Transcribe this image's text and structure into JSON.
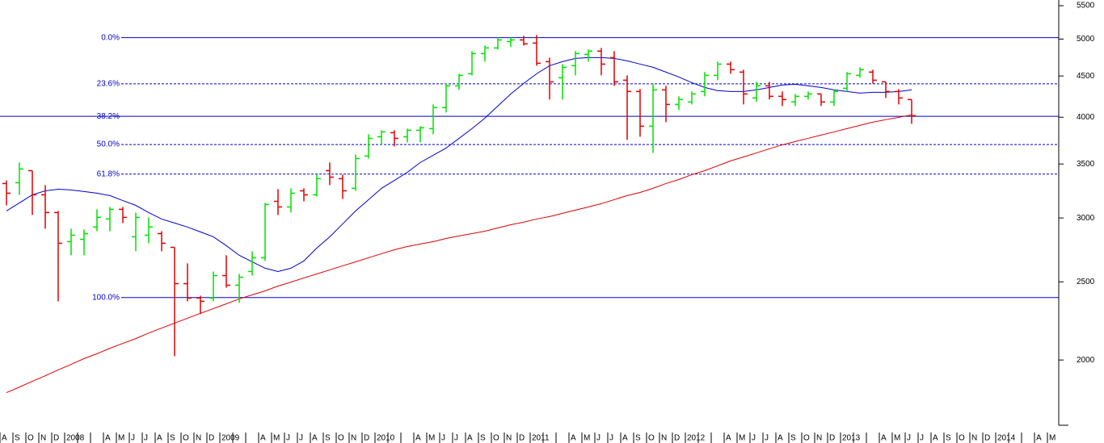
{
  "chart_data": {
    "type": "ohlc",
    "categories": [
      "A",
      "S",
      "O",
      "N",
      "D",
      "2008",
      null,
      null,
      "A",
      "M",
      "J",
      "J",
      "A",
      "S",
      "O",
      "N",
      "D",
      "2009",
      null,
      null,
      "A",
      "M",
      "J",
      "J",
      "A",
      "S",
      "O",
      "N",
      "D",
      "2010",
      null,
      null,
      "A",
      "M",
      "J",
      "J",
      "A",
      "S",
      "O",
      "N",
      "D",
      "2011",
      null,
      null,
      "A",
      "M",
      "J",
      "J",
      "A",
      "S",
      "O",
      "N",
      "D",
      "2012",
      null,
      null,
      "A",
      "M",
      "J",
      "J",
      "A",
      "S",
      "O",
      "N",
      "D",
      "2013",
      null,
      null,
      "A",
      "M",
      "J",
      "J",
      "A",
      "S",
      "O",
      "N",
      "D",
      "2014",
      null,
      null,
      "A",
      "M"
    ],
    "open": [
      3310,
      3318,
      3434,
      3205,
      3047,
      2804,
      2823,
      2923,
      2991,
      3075,
      2843,
      2856,
      2869,
      2759,
      2487,
      2387,
      2387,
      2545,
      2476,
      2575,
      2678,
      3146,
      3096,
      3242,
      3205,
      3434,
      3356,
      3265,
      3580,
      3783,
      3827,
      3783,
      3854,
      3872,
      4111,
      4375,
      4529,
      4797,
      4875,
      4965,
      4988,
      4943,
      4688,
      4477,
      4634,
      4786,
      4831,
      4742,
      4446,
      4305,
      3899,
      4325,
      4149,
      4178,
      4305,
      4508,
      4655,
      4550,
      4226,
      4375,
      4246,
      4178,
      4246,
      4275,
      4178,
      4345,
      4508,
      4550,
      4425,
      4305,
      4207,
      null,
      null,
      null,
      null,
      null,
      null,
      null,
      null,
      null,
      null,
      null
    ],
    "high": [
      3340,
      3515,
      3434,
      3295,
      3061,
      2910,
      2903,
      3075,
      3096,
      3096,
      3047,
      3005,
      2889,
      2759,
      2635,
      2403,
      2575,
      2697,
      2557,
      2728,
      3132,
      3257,
      3265,
      3265,
      3395,
      3515,
      3395,
      3596,
      3810,
      3854,
      3854,
      3872,
      3899,
      4149,
      4405,
      4529,
      4831,
      4909,
      5023,
      5023,
      5046,
      5058,
      4742,
      4655,
      4831,
      4853,
      4875,
      4831,
      4508,
      4335,
      4405,
      4375,
      4246,
      4305,
      4550,
      4688,
      4688,
      4581,
      4425,
      4425,
      4305,
      4275,
      4305,
      4275,
      4325,
      4550,
      4613,
      4581,
      4425,
      4335,
      4207,
      null,
      null,
      null,
      null,
      null,
      null,
      null,
      null,
      null,
      null,
      null
    ],
    "low": [
      3110,
      3205,
      3026,
      2910,
      2365,
      2697,
      2697,
      2889,
      2889,
      2957,
      2728,
      2791,
      2728,
      2022,
      2365,
      2280,
      2365,
      2459,
      2354,
      2545,
      2654,
      3026,
      3047,
      3146,
      3190,
      3295,
      3168,
      3242,
      3555,
      3697,
      3680,
      3723,
      3723,
      3810,
      4055,
      4325,
      4508,
      4688,
      4853,
      4887,
      4909,
      4634,
      4207,
      4207,
      4508,
      4688,
      4508,
      4375,
      3749,
      3783,
      3613,
      3944,
      4083,
      4149,
      4246,
      4446,
      4529,
      4149,
      4178,
      4207,
      4130,
      4130,
      4207,
      4130,
      4130,
      4305,
      4477,
      4405,
      4226,
      4149,
      3926,
      null,
      null,
      null,
      null,
      null,
      null,
      null,
      null,
      null,
      null,
      null
    ],
    "close": [
      3220,
      3450,
      3205,
      3047,
      2791,
      2856,
      2869,
      3005,
      3075,
      3005,
      3005,
      2923,
      2791,
      2487,
      2387,
      2365,
      2545,
      2476,
      2533,
      2678,
      3118,
      3096,
      3220,
      3205,
      3356,
      3371,
      3242,
      3555,
      3766,
      3836,
      3766,
      3854,
      3881,
      4111,
      4375,
      4508,
      4797,
      4875,
      4988,
      4988,
      4932,
      4667,
      4425,
      4613,
      4797,
      4831,
      4655,
      4425,
      4305,
      3899,
      4325,
      4149,
      4207,
      4275,
      4508,
      4655,
      4581,
      4275,
      4375,
      4246,
      4207,
      4246,
      4275,
      4178,
      4305,
      4529,
      4581,
      4446,
      4305,
      4226,
      4018,
      null,
      null,
      null,
      null,
      null,
      null,
      null,
      null,
      null,
      null,
      null
    ],
    "up_color": "#00e000",
    "down_color": "#e00000",
    "lines": [
      {
        "color": "#0000cc",
        "values": [
          3061,
          3132,
          3205,
          3242,
          3257,
          3250,
          3235,
          3220,
          3198,
          3153,
          3110,
          3047,
          2991,
          2957,
          2923,
          2883,
          2843,
          2772,
          2697,
          2647,
          2599,
          2575,
          2599,
          2654,
          2753,
          2843,
          2950,
          3061,
          3161,
          3265,
          3340,
          3418,
          3515,
          3588,
          3663,
          3766,
          3872,
          3990,
          4130,
          4275,
          4405,
          4529,
          4634,
          4688,
          4731,
          4742,
          4742,
          4731,
          4699,
          4655,
          4613,
          4550,
          4487,
          4415,
          4355,
          4315,
          4305,
          4305,
          4325,
          4355,
          4385,
          4395,
          4375,
          4355,
          4325,
          4305,
          4285,
          4295,
          4295,
          4305,
          4325,
          null,
          null,
          null,
          null,
          null,
          null,
          null,
          null,
          null,
          null,
          null
        ]
      },
      {
        "color": "#dd0000",
        "values": [
          1822,
          1851,
          1882,
          1912,
          1944,
          1975,
          2008,
          2036,
          2068,
          2097,
          2126,
          2160,
          2191,
          2222,
          2253,
          2285,
          2316,
          2348,
          2381,
          2409,
          2436,
          2470,
          2498,
          2528,
          2557,
          2587,
          2617,
          2647,
          2678,
          2709,
          2740,
          2765,
          2785,
          2804,
          2830,
          2850,
          2869,
          2889,
          2916,
          2943,
          2964,
          2991,
          3012,
          3040,
          3068,
          3096,
          3125,
          3161,
          3198,
          3227,
          3265,
          3310,
          3348,
          3395,
          3434,
          3482,
          3531,
          3571,
          3613,
          3655,
          3697,
          3732,
          3766,
          3801,
          3836,
          3872,
          3908,
          3944,
          3972,
          3999,
          4027,
          null,
          null,
          null,
          null,
          null,
          null,
          null,
          null,
          null,
          null,
          null
        ]
      }
    ],
    "fib_levels": [
      {
        "label": "0.0%",
        "value": 5020,
        "line_style": "solid"
      },
      {
        "label": "23.6%",
        "value": 4400,
        "line_style": "dashed"
      },
      {
        "label": "38.2%",
        "value": 4010,
        "line_style": "solid",
        "extend_left": true
      },
      {
        "label": "50.0%",
        "value": 3700,
        "line_style": "dashed"
      },
      {
        "label": "61.8%",
        "value": 3400,
        "line_style": "dashed"
      },
      {
        "label": "100.0%",
        "value": 2390,
        "line_style": "solid"
      }
    ],
    "fib_color": "#0000cc",
    "log_scale": true,
    "ylim": [
      1660,
      5590
    ],
    "yticks": [
      2000,
      2500,
      3000,
      3500,
      4000,
      4500,
      5000,
      5500
    ]
  }
}
